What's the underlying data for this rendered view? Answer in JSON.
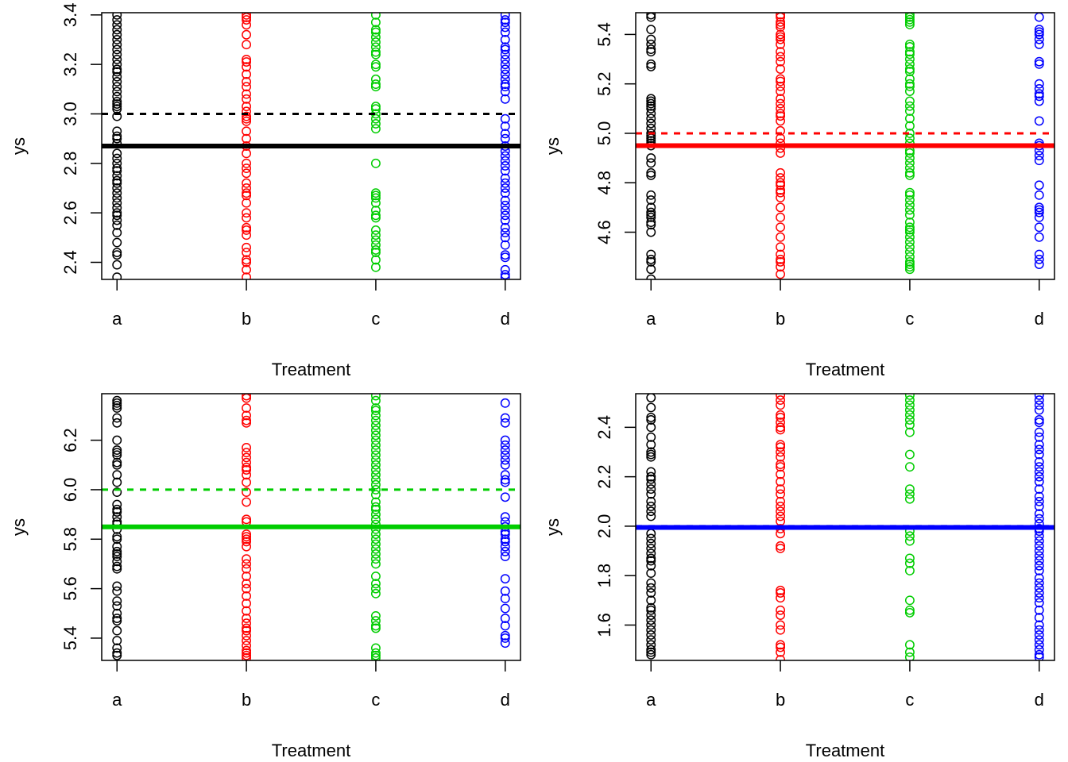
{
  "chart_data": [
    {
      "type": "scatter",
      "panel": "top-left",
      "title": "",
      "xlabel": "Treatment",
      "ylabel": "ys",
      "categories": [
        "a",
        "b",
        "c",
        "d"
      ],
      "ylim": [
        2.331,
        3.409
      ],
      "yticks": [
        "2.4",
        "2.6",
        "2.8",
        "3.0",
        "3.2",
        "3.4"
      ],
      "ytick_values": [
        2.4,
        2.6,
        2.8,
        3.0,
        3.2,
        3.4
      ],
      "reference_line": {
        "value": 3.0,
        "style": "dashed",
        "color": "#000000"
      },
      "mean_line": {
        "value": 2.87,
        "style": "solid",
        "color": "#000000"
      },
      "series": [
        {
          "name": "a",
          "color": "#000000",
          "values": [
            3.4,
            3.38,
            3.36,
            3.34,
            3.32,
            3.3,
            3.28,
            3.26,
            3.24,
            3.22,
            3.2,
            3.18,
            3.17,
            3.15,
            3.13,
            3.11,
            3.09,
            3.07,
            3.05,
            3.04,
            3.03,
            3.02,
            2.99,
            2.93,
            2.91,
            2.9,
            2.88,
            2.84,
            2.82,
            2.8,
            2.78,
            2.77,
            2.75,
            2.73,
            2.72,
            2.7,
            2.68,
            2.66,
            2.64,
            2.62,
            2.6,
            2.59,
            2.57,
            2.55,
            2.52,
            2.48,
            2.44,
            2.43,
            2.39,
            2.34
          ]
        },
        {
          "name": "b",
          "color": "#ff0000",
          "values": [
            3.4,
            3.39,
            3.38,
            3.36,
            3.32,
            3.28,
            3.22,
            3.21,
            3.19,
            3.16,
            3.13,
            3.11,
            3.08,
            3.06,
            3.03,
            3.01,
            2.99,
            2.98,
            2.97,
            2.93,
            2.9,
            2.87,
            2.84,
            2.8,
            2.78,
            2.76,
            2.72,
            2.7,
            2.68,
            2.67,
            2.64,
            2.6,
            2.58,
            2.54,
            2.53,
            2.51,
            2.46,
            2.44,
            2.41,
            2.4,
            2.37,
            2.34
          ]
        },
        {
          "name": "c",
          "color": "#00cd00",
          "values": [
            3.4,
            3.37,
            3.34,
            3.33,
            3.31,
            3.29,
            3.27,
            3.25,
            3.24,
            3.2,
            3.19,
            3.14,
            3.12,
            3.11,
            3.03,
            3.02,
            3.0,
            2.98,
            2.96,
            2.94,
            2.8,
            2.68,
            2.67,
            2.66,
            2.64,
            2.61,
            2.59,
            2.58,
            2.53,
            2.51,
            2.49,
            2.47,
            2.45,
            2.44,
            2.41,
            2.38
          ]
        },
        {
          "name": "d",
          "color": "#0000ff",
          "values": [
            3.4,
            3.38,
            3.37,
            3.35,
            3.33,
            3.3,
            3.27,
            3.26,
            3.24,
            3.22,
            3.2,
            3.18,
            3.16,
            3.14,
            3.12,
            3.11,
            3.09,
            3.06,
            2.98,
            2.95,
            2.92,
            2.9,
            2.87,
            2.85,
            2.83,
            2.81,
            2.79,
            2.77,
            2.74,
            2.72,
            2.7,
            2.68,
            2.65,
            2.63,
            2.61,
            2.59,
            2.57,
            2.54,
            2.52,
            2.5,
            2.47,
            2.43,
            2.42,
            2.37,
            2.35,
            2.34
          ]
        }
      ]
    },
    {
      "type": "scatter",
      "panel": "top-right",
      "title": "",
      "xlabel": "Treatment",
      "ylabel": "ys",
      "categories": [
        "a",
        "b",
        "c",
        "d"
      ],
      "ylim": [
        4.409,
        5.488
      ],
      "yticks": [
        "4.6",
        "4.8",
        "5.0",
        "5.2",
        "5.4"
      ],
      "ytick_values": [
        4.6,
        4.8,
        5.0,
        5.2,
        5.4
      ],
      "reference_line": {
        "value": 5.0,
        "style": "dashed",
        "color": "#ff0000"
      },
      "mean_line": {
        "value": 4.95,
        "style": "solid",
        "color": "#ff0000"
      },
      "series": [
        {
          "name": "a",
          "color": "#000000",
          "values": [
            5.48,
            5.47,
            5.42,
            5.38,
            5.36,
            5.34,
            5.33,
            5.28,
            5.27,
            5.14,
            5.13,
            5.12,
            5.11,
            5.1,
            5.08,
            5.06,
            5.04,
            5.02,
            5.0,
            4.99,
            4.98,
            4.97,
            4.96,
            4.95,
            4.9,
            4.88,
            4.84,
            4.83,
            4.75,
            4.73,
            4.7,
            4.68,
            4.67,
            4.66,
            4.64,
            4.63,
            4.6,
            4.51,
            4.49,
            4.48,
            4.45,
            4.41
          ]
        },
        {
          "name": "b",
          "color": "#ff0000",
          "values": [
            5.48,
            5.47,
            5.45,
            5.44,
            5.43,
            5.4,
            5.39,
            5.38,
            5.36,
            5.33,
            5.31,
            5.29,
            5.26,
            5.22,
            5.21,
            5.19,
            5.17,
            5.14,
            5.12,
            5.1,
            5.08,
            5.07,
            5.05,
            5.01,
            4.98,
            4.96,
            4.94,
            4.92,
            4.84,
            4.82,
            4.8,
            4.79,
            4.77,
            4.76,
            4.74,
            4.7,
            4.66,
            4.62,
            4.58,
            4.54,
            4.51,
            4.49,
            4.48,
            4.46,
            4.43
          ]
        },
        {
          "name": "c",
          "color": "#00cd00",
          "values": [
            5.48,
            5.47,
            5.46,
            5.45,
            5.44,
            5.36,
            5.35,
            5.33,
            5.32,
            5.3,
            5.28,
            5.26,
            5.25,
            5.22,
            5.2,
            5.19,
            5.17,
            5.13,
            5.11,
            5.09,
            5.06,
            5.03,
            5.0,
            4.98,
            4.96,
            4.93,
            4.92,
            4.9,
            4.88,
            4.86,
            4.84,
            4.83,
            4.76,
            4.75,
            4.73,
            4.71,
            4.69,
            4.67,
            4.64,
            4.62,
            4.61,
            4.6,
            4.58,
            4.56,
            4.54,
            4.52,
            4.5,
            4.48,
            4.47,
            4.46,
            4.45
          ]
        },
        {
          "name": "d",
          "color": "#0000ff",
          "values": [
            5.47,
            5.42,
            5.41,
            5.4,
            5.38,
            5.36,
            5.29,
            5.28,
            5.2,
            5.18,
            5.16,
            5.15,
            5.13,
            5.05,
            4.96,
            4.95,
            4.93,
            4.91,
            4.89,
            4.79,
            4.75,
            4.7,
            4.69,
            4.68,
            4.66,
            4.62,
            4.58,
            4.51,
            4.49,
            4.47
          ]
        }
      ]
    },
    {
      "type": "scatter",
      "panel": "bottom-left",
      "title": "",
      "xlabel": "Treatment",
      "ylabel": "ys",
      "categories": [
        "a",
        "b",
        "c",
        "d"
      ],
      "ylim": [
        5.31,
        6.388
      ],
      "yticks": [
        "5.4",
        "5.6",
        "5.8",
        "6.0",
        "6.2"
      ],
      "ytick_values": [
        5.4,
        5.6,
        5.8,
        6.0,
        6.2
      ],
      "reference_line": {
        "value": 6.0,
        "style": "dashed",
        "color": "#00cd00"
      },
      "mean_line": {
        "value": 5.85,
        "style": "solid",
        "color": "#00cd00"
      },
      "series": [
        {
          "name": "a",
          "color": "#000000",
          "values": [
            6.36,
            6.35,
            6.34,
            6.33,
            6.29,
            6.27,
            6.2,
            6.16,
            6.15,
            6.14,
            6.11,
            6.1,
            6.06,
            6.03,
            5.99,
            5.94,
            5.92,
            5.91,
            5.89,
            5.87,
            5.86,
            5.84,
            5.81,
            5.8,
            5.77,
            5.75,
            5.74,
            5.73,
            5.71,
            5.69,
            5.68,
            5.61,
            5.59,
            5.55,
            5.53,
            5.5,
            5.48,
            5.47,
            5.43,
            5.39,
            5.36,
            5.34,
            5.33
          ]
        },
        {
          "name": "b",
          "color": "#ff0000",
          "values": [
            6.38,
            6.37,
            6.33,
            6.3,
            6.28,
            6.27,
            6.17,
            6.15,
            6.13,
            6.11,
            6.09,
            6.08,
            6.06,
            6.03,
            5.99,
            5.95,
            5.88,
            5.87,
            5.82,
            5.81,
            5.8,
            5.79,
            5.77,
            5.72,
            5.7,
            5.68,
            5.65,
            5.62,
            5.6,
            5.57,
            5.54,
            5.51,
            5.48,
            5.46,
            5.44,
            5.43,
            5.41,
            5.39,
            5.37,
            5.35,
            5.34,
            5.33,
            5.32
          ]
        },
        {
          "name": "c",
          "color": "#00cd00",
          "values": [
            6.38,
            6.36,
            6.33,
            6.32,
            6.3,
            6.28,
            6.26,
            6.24,
            6.22,
            6.2,
            6.18,
            6.16,
            6.14,
            6.12,
            6.1,
            6.08,
            6.06,
            6.04,
            6.02,
            6.0,
            5.98,
            5.95,
            5.93,
            5.92,
            5.9,
            5.88,
            5.86,
            5.84,
            5.82,
            5.8,
            5.78,
            5.76,
            5.74,
            5.72,
            5.7,
            5.65,
            5.62,
            5.6,
            5.58,
            5.49,
            5.47,
            5.45,
            5.44,
            5.36,
            5.34,
            5.33,
            5.32
          ]
        },
        {
          "name": "d",
          "color": "#0000ff",
          "values": [
            6.35,
            6.29,
            6.27,
            6.2,
            6.18,
            6.16,
            6.14,
            6.12,
            6.1,
            6.06,
            6.04,
            6.03,
            5.97,
            5.89,
            5.87,
            5.85,
            5.83,
            5.82,
            5.8,
            5.79,
            5.77,
            5.75,
            5.73,
            5.64,
            5.59,
            5.56,
            5.52,
            5.48,
            5.45,
            5.41,
            5.4,
            5.38
          ]
        }
      ]
    },
    {
      "type": "scatter",
      "panel": "bottom-right",
      "title": "",
      "xlabel": "Treatment",
      "ylabel": "ys",
      "categories": [
        "a",
        "b",
        "c",
        "d"
      ],
      "ylim": [
        1.457,
        2.536
      ],
      "yticks": [
        "1.6",
        "1.8",
        "2.0",
        "2.2",
        "2.4"
      ],
      "ytick_values": [
        1.6,
        1.8,
        2.0,
        2.2,
        2.4
      ],
      "reference_line": {
        "value": 2.0,
        "style": "dashed",
        "color": "#0000ff"
      },
      "mean_line": {
        "value": 1.995,
        "style": "solid",
        "color": "#0000ff"
      },
      "series": [
        {
          "name": "a",
          "color": "#000000",
          "values": [
            2.52,
            2.48,
            2.44,
            2.43,
            2.4,
            2.36,
            2.33,
            2.3,
            2.29,
            2.28,
            2.22,
            2.2,
            2.19,
            2.17,
            2.15,
            2.13,
            2.1,
            2.08,
            2.06,
            2.04,
            1.97,
            1.95,
            1.93,
            1.91,
            1.89,
            1.87,
            1.86,
            1.84,
            1.81,
            1.77,
            1.75,
            1.73,
            1.7,
            1.67,
            1.66,
            1.64,
            1.62,
            1.6,
            1.58,
            1.56,
            1.54,
            1.52,
            1.5,
            1.49,
            1.48
          ]
        },
        {
          "name": "b",
          "color": "#ff0000",
          "values": [
            2.53,
            2.51,
            2.49,
            2.45,
            2.44,
            2.42,
            2.4,
            2.39,
            2.33,
            2.32,
            2.3,
            2.28,
            2.25,
            2.24,
            2.21,
            2.18,
            2.15,
            2.13,
            2.1,
            2.08,
            2.06,
            2.04,
            2.02,
            1.99,
            1.97,
            1.92,
            1.91,
            1.74,
            1.73,
            1.71,
            1.66,
            1.64,
            1.6,
            1.58,
            1.52,
            1.51,
            1.49,
            1.46
          ]
        },
        {
          "name": "c",
          "color": "#00cd00",
          "values": [
            2.53,
            2.51,
            2.49,
            2.47,
            2.45,
            2.43,
            2.41,
            2.38,
            2.29,
            2.24,
            2.15,
            2.13,
            2.11,
            1.98,
            1.96,
            1.94,
            1.87,
            1.85,
            1.82,
            1.7,
            1.66,
            1.65,
            1.52,
            1.49,
            1.47
          ]
        },
        {
          "name": "d",
          "color": "#0000ff",
          "values": [
            2.53,
            2.51,
            2.49,
            2.47,
            2.43,
            2.42,
            2.38,
            2.36,
            2.33,
            2.31,
            2.29,
            2.26,
            2.24,
            2.22,
            2.2,
            2.18,
            2.15,
            2.12,
            2.1,
            2.08,
            2.05,
            2.03,
            2.01,
            1.99,
            1.98,
            1.96,
            1.94,
            1.92,
            1.9,
            1.88,
            1.86,
            1.84,
            1.82,
            1.79,
            1.77,
            1.75,
            1.73,
            1.71,
            1.69,
            1.66,
            1.63,
            1.6,
            1.58,
            1.56,
            1.54,
            1.52,
            1.5,
            1.48,
            1.47
          ]
        }
      ]
    }
  ]
}
